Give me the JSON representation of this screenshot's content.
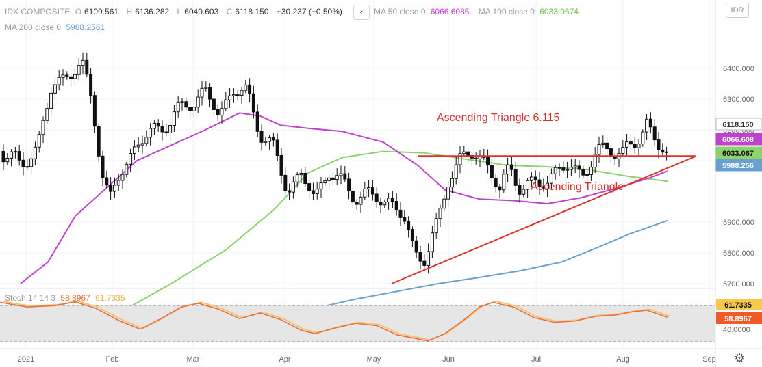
{
  "header": {
    "symbol": "IDX COMPOSITE",
    "open_label": "O",
    "open": "6109.561",
    "high_label": "H",
    "high": "6136.282",
    "low_label": "L",
    "low": "6040.603",
    "close_label": "C",
    "close": "6118.150",
    "change": "+30.237 (+0.50%)",
    "ma50_label": "MA 50 close 0",
    "ma50_value": "6066.6085",
    "ma100_label": "MA 100 close 0",
    "ma100_value": "6033.0674",
    "ma200_label": "MA 200 close 0",
    "ma200_value": "5988.2561",
    "currency": "IDR",
    "collapse_glyph": "‹"
  },
  "stoch_legend": {
    "label": "Stoch 14 14 3",
    "k_value": "58.8967",
    "d_value": "61.7335"
  },
  "colors": {
    "ma50": "#c040d0",
    "ma100": "#8bd36a",
    "ma200": "#6a9fcf",
    "up": "#333333",
    "down": "#111111",
    "trendline": "#e0302a",
    "stoch_k": "#e8703a",
    "stoch_d": "#f5c27a"
  },
  "chart_data": {
    "type": "candlestick",
    "x_ticks": [
      "2021",
      "Feb",
      "Mar",
      "Apr",
      "May",
      "Jun",
      "Jul",
      "Aug",
      "Sep"
    ],
    "y_ticks": [
      "6400.000",
      "6300.000",
      "6200.000",
      "6100.000",
      "5900.000",
      "5800.000",
      "5700.000"
    ],
    "y_range": [
      5700,
      6440
    ],
    "price_badges": [
      {
        "name": "last",
        "value": "6118.150",
        "color": "#ffffff",
        "text": "#333333"
      },
      {
        "name": "ma50",
        "value": "6066.608",
        "color": "#c040d0",
        "text": "#ffffff"
      },
      {
        "name": "ma100",
        "value": "6033.067",
        "color": "#8bd36a",
        "text": "#111111"
      },
      {
        "name": "ma200",
        "value": "5988.256",
        "color": "#6a9fcf",
        "text": "#ffffff"
      }
    ],
    "annotations": [
      {
        "text": "Ascending Triangle  6.115"
      },
      {
        "text": "Ascending Triangle"
      }
    ],
    "trendlines": {
      "resistance": {
        "y": 6115
      },
      "support": {
        "from": 5700,
        "to": 6115
      }
    },
    "stoch": {
      "y_ticks": [
        "40.0000"
      ],
      "badges": [
        {
          "value": "61.7335",
          "color": "#f7c948",
          "text": "#111111"
        },
        {
          "value": "58.8967",
          "color": "#ef5a28",
          "text": "#ffffff"
        }
      ]
    }
  }
}
